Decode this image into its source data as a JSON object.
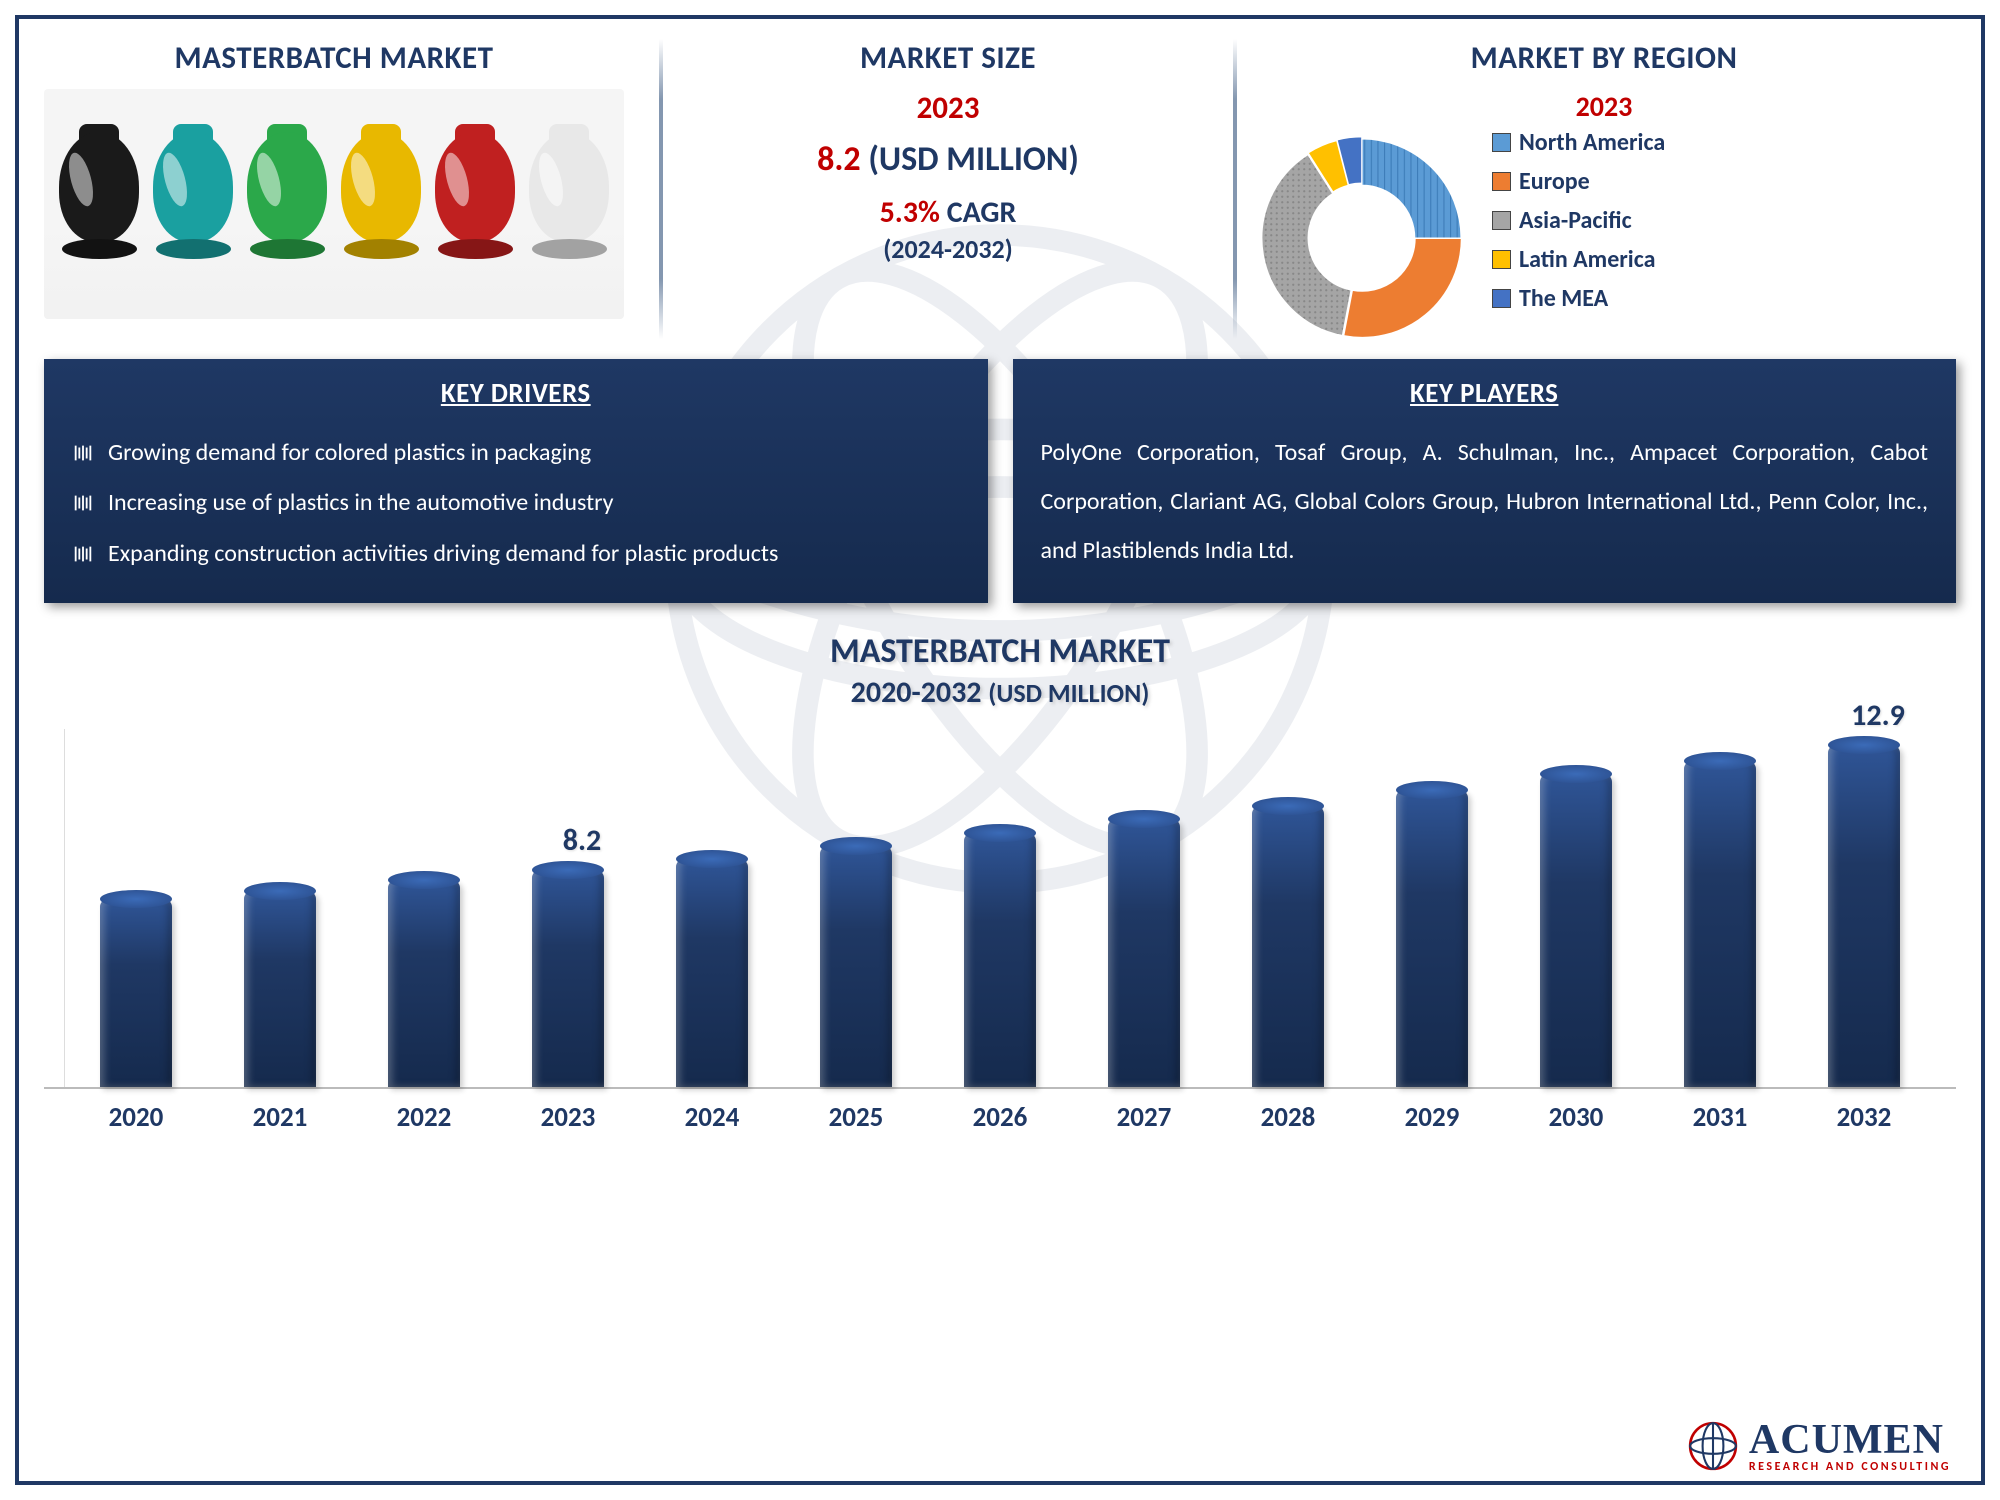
{
  "header": {
    "left_title": "MASTERBATCH MARKET",
    "mid_title": "MARKET SIZE",
    "right_title": "MARKET BY REGION"
  },
  "market_size": {
    "year": "2023",
    "value": "8.2",
    "unit": "(USD MILLION)",
    "cagr": "5.3%",
    "cagr_label": "CAGR",
    "period": "(2024-2032)"
  },
  "region": {
    "year": "2023",
    "donut": {
      "inner_radius": 48,
      "outer_radius": 90,
      "slices": [
        {
          "label": "North America",
          "value": 25,
          "color": "#5b9bd5",
          "pattern": "diag"
        },
        {
          "label": "Europe",
          "value": 28,
          "color": "#ed7d31",
          "pattern": "none"
        },
        {
          "label": "Asia-Pacific",
          "value": 38,
          "color": "#a5a5a5",
          "pattern": "dots"
        },
        {
          "label": "Latin America",
          "value": 5,
          "color": "#ffc000",
          "pattern": "none"
        },
        {
          "label": "The MEA",
          "value": 4,
          "color": "#4472c4",
          "pattern": "none"
        }
      ]
    },
    "legend": [
      "North America",
      "Europe",
      "Asia-Pacific",
      "Latin America",
      "The MEA"
    ],
    "legend_colors": [
      "#5b9bd5",
      "#ed7d31",
      "#a5a5a5",
      "#ffc000",
      "#4472c4"
    ]
  },
  "key_drivers": {
    "title": "KEY DRIVERS",
    "items": [
      "Growing demand for colored plastics in packaging",
      "Increasing use of plastics in the automotive industry",
      "Expanding construction activities driving demand for plastic products"
    ]
  },
  "key_players": {
    "title": "KEY PLAYERS",
    "text": "PolyOne Corporation, Tosaf Group, A. Schulman, Inc., Ampacet Corporation, Cabot Corporation, Clariant AG, Global Colors Group, Hubron International Ltd., Penn Color, Inc., and Plastiblends India Ltd."
  },
  "bar_chart": {
    "title": "MASTERBATCH MARKET",
    "subtitle_main": "2020-2032",
    "subtitle_unit": "(USD MILLION)",
    "type": "bar",
    "bar_color": "#1f3864",
    "background": "#ffffff",
    "ymax": 13.5,
    "categories": [
      "2020",
      "2021",
      "2022",
      "2023",
      "2024",
      "2025",
      "2026",
      "2027",
      "2028",
      "2029",
      "2030",
      "2031",
      "2032"
    ],
    "values": [
      7.1,
      7.4,
      7.8,
      8.2,
      8.6,
      9.1,
      9.6,
      10.1,
      10.6,
      11.2,
      11.8,
      12.3,
      12.9
    ],
    "labels_shown": {
      "2023": "8.2",
      "2032": "12.9"
    }
  },
  "product_flasks": [
    {
      "color": "#1a1a1a"
    },
    {
      "color": "#1aa0a0"
    },
    {
      "color": "#2ba84a"
    },
    {
      "color": "#e8b800"
    },
    {
      "color": "#c02020"
    },
    {
      "color": "#e8e8e8"
    }
  ],
  "logo": {
    "main": "ACUMEN",
    "sub": "RESEARCH AND CONSULTING"
  }
}
